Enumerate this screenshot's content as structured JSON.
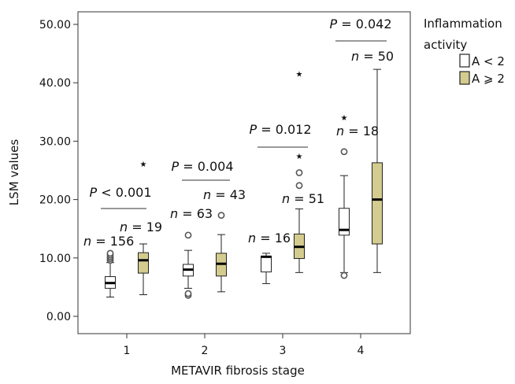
{
  "chart_data": {
    "type": "box",
    "xlabel": "METAVIR fibrosis stage",
    "ylabel": "LSM values",
    "ylim": [
      -3,
      53
    ],
    "yticks": [
      0,
      10,
      20,
      30,
      40,
      50
    ],
    "ytick_labels": [
      "0.00",
      "10.00",
      "20.00",
      "30.00",
      "40.00",
      "50.00"
    ],
    "categories": [
      "1",
      "2",
      "3",
      "4"
    ],
    "legend": {
      "title": "Inflammation activity",
      "title_lines": [
        "Inflammation",
        "activity"
      ],
      "position": "right",
      "items": [
        {
          "label": "A < 2",
          "color": "#ffffff"
        },
        {
          "label": "A ⩾ 2",
          "color": "#d4cc8f"
        }
      ]
    },
    "series": [
      {
        "name": "A < 2",
        "color": "#ffffff",
        "boxes": [
          {
            "category": "1",
            "n_label": "n = 156",
            "whisker_low": 3.3,
            "q1": 4.8,
            "median": 5.7,
            "q3": 6.8,
            "whisker_high": 9.2,
            "outliers": [
              9.6,
              9.9,
              10.2,
              10.5,
              10.8
            ],
            "extremes": []
          },
          {
            "category": "2",
            "n_label": "n = 63",
            "whisker_low": 4.8,
            "q1": 6.9,
            "median": 8.0,
            "q3": 8.9,
            "whisker_high": 11.3,
            "outliers": [
              3.6,
              3.9,
              13.9
            ],
            "extremes": []
          },
          {
            "category": "3",
            "n_label": "n = 16",
            "whisker_low": 5.6,
            "q1": 7.6,
            "median": 10.2,
            "q3": 10.3,
            "whisker_high": 10.8,
            "outliers": [],
            "extremes": []
          },
          {
            "category": "4",
            "n_label": "n = 18",
            "whisker_low": 7.5,
            "q1": 13.9,
            "median": 14.8,
            "q3": 18.5,
            "whisker_high": 24.1,
            "outliers": [
              7.0,
              28.2
            ],
            "extremes": [
              34.2
            ]
          }
        ]
      },
      {
        "name": "A ⩾ 2",
        "color": "#d4cc8f",
        "boxes": [
          {
            "category": "1",
            "n_label": "n = 19",
            "whisker_low": 3.7,
            "q1": 7.4,
            "median": 9.6,
            "q3": 10.9,
            "whisker_high": 12.4,
            "outliers": [],
            "extremes": [
              26.3
            ]
          },
          {
            "category": "2",
            "n_label": "n = 43",
            "whisker_low": 4.2,
            "q1": 6.9,
            "median": 9.0,
            "q3": 10.8,
            "whisker_high": 14.0,
            "outliers": [
              17.3
            ],
            "extremes": []
          },
          {
            "category": "3",
            "n_label": "n = 51",
            "whisker_low": 7.5,
            "q1": 9.9,
            "median": 11.9,
            "q3": 14.1,
            "whisker_high": 18.4,
            "outliers": [
              22.4,
              24.6
            ],
            "extremes": [
              27.6,
              41.7
            ]
          },
          {
            "category": "4",
            "n_label": "n = 50",
            "whisker_low": 7.5,
            "q1": 12.4,
            "median": 20.0,
            "q3": 26.3,
            "whisker_high": 42.3,
            "outliers": [],
            "extremes": []
          }
        ]
      }
    ],
    "p_values": [
      {
        "category": "1",
        "label": "P < 0.001"
      },
      {
        "category": "2",
        "label": "P = 0.004"
      },
      {
        "category": "3",
        "label": "P = 0.012"
      },
      {
        "category": "4",
        "label": "P = 0.042"
      }
    ],
    "grid": false
  }
}
